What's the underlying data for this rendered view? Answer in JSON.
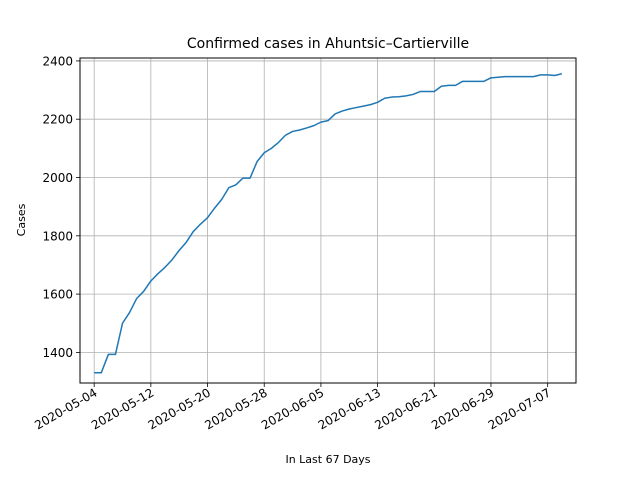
{
  "chart_data": {
    "type": "line",
    "title": "Confirmed cases in Ahuntsic–Cartierville",
    "xlabel": "In Last 67 Days",
    "ylabel": "Cases",
    "grid": true,
    "line_color": "#1f77b4",
    "grid_color": "#b0b0b0",
    "xlim": [
      "2020-05-02",
      "2020-07-11"
    ],
    "ylim": [
      1295,
      2410
    ],
    "x_ticks": [
      "2020-05-04",
      "2020-05-12",
      "2020-05-20",
      "2020-05-28",
      "2020-06-05",
      "2020-06-13",
      "2020-06-21",
      "2020-06-29",
      "2020-07-07"
    ],
    "y_ticks": [
      1400,
      1600,
      1800,
      2000,
      2200,
      2400
    ],
    "series": [
      {
        "x": [
          "2020-05-04",
          "2020-05-05",
          "2020-05-06",
          "2020-05-07",
          "2020-05-08",
          "2020-05-09",
          "2020-05-10",
          "2020-05-11",
          "2020-05-12",
          "2020-05-13",
          "2020-05-14",
          "2020-05-15",
          "2020-05-16",
          "2020-05-17",
          "2020-05-18",
          "2020-05-19",
          "2020-05-20",
          "2020-05-21",
          "2020-05-22",
          "2020-05-23",
          "2020-05-24",
          "2020-05-25",
          "2020-05-26",
          "2020-05-27",
          "2020-05-28",
          "2020-05-29",
          "2020-05-30",
          "2020-05-31",
          "2020-06-01",
          "2020-06-02",
          "2020-06-03",
          "2020-06-04",
          "2020-06-05",
          "2020-06-06",
          "2020-06-07",
          "2020-06-08",
          "2020-06-09",
          "2020-06-10",
          "2020-06-11",
          "2020-06-12",
          "2020-06-13",
          "2020-06-14",
          "2020-06-15",
          "2020-06-16",
          "2020-06-17",
          "2020-06-18",
          "2020-06-19",
          "2020-06-20",
          "2020-06-21",
          "2020-06-22",
          "2020-06-23",
          "2020-06-24",
          "2020-06-25",
          "2020-06-26",
          "2020-06-27",
          "2020-06-28",
          "2020-06-29",
          "2020-06-30",
          "2020-07-01",
          "2020-07-02",
          "2020-07-03",
          "2020-07-04",
          "2020-07-05",
          "2020-07-06",
          "2020-07-07",
          "2020-07-08",
          "2020-07-09"
        ],
        "y": [
          1330,
          1330,
          1393,
          1393,
          1500,
          1537,
          1585,
          1610,
          1645,
          1670,
          1692,
          1718,
          1750,
          1778,
          1815,
          1840,
          1862,
          1895,
          1925,
          1965,
          1975,
          1998,
          1998,
          2055,
          2085,
          2100,
          2120,
          2145,
          2158,
          2163,
          2170,
          2178,
          2190,
          2195,
          2218,
          2228,
          2235,
          2240,
          2245,
          2250,
          2258,
          2272,
          2276,
          2277,
          2280,
          2285,
          2295,
          2295,
          2295,
          2313,
          2316,
          2316,
          2330,
          2330,
          2330,
          2330,
          2342,
          2344,
          2346,
          2346,
          2346,
          2346,
          2346,
          2352,
          2352,
          2350,
          2356
        ]
      }
    ]
  }
}
